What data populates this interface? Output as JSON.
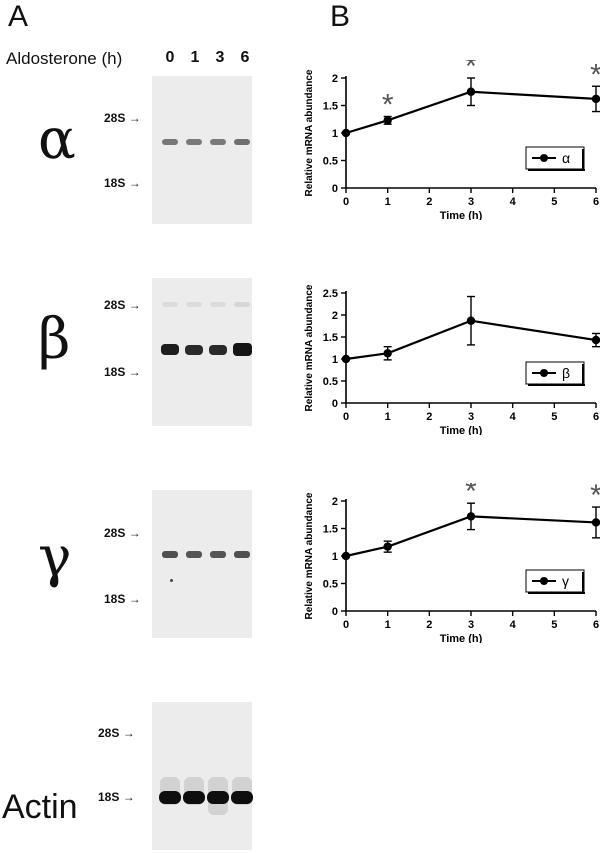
{
  "panels": {
    "a": "A",
    "b": "B"
  },
  "aldosterone_label": "Aldosterone (h)",
  "lanes": [
    "0",
    "1",
    "3",
    "6"
  ],
  "markers": {
    "m28": "28S",
    "m18": "18S"
  },
  "blots": [
    {
      "label": "α"
    },
    {
      "label": "β"
    },
    {
      "label": "γ"
    },
    {
      "label": "Actin"
    }
  ],
  "chart_data": [
    {
      "type": "line",
      "x": [
        0,
        1,
        3,
        6
      ],
      "values": [
        1.0,
        1.23,
        1.75,
        1.62
      ],
      "errors": [
        0.02,
        0.07,
        0.25,
        0.23
      ],
      "significant": [
        false,
        true,
        true,
        true
      ],
      "xlabel": "Time (h)",
      "ylabel": "Relative mRNA abundance",
      "xlim": [
        0,
        6
      ],
      "ylim": [
        0,
        2
      ],
      "xticks": [
        "0",
        "1",
        "2",
        "3",
        "4",
        "5",
        "6"
      ],
      "yticks": [
        "0",
        "0.5",
        "1",
        "1.5",
        "2"
      ],
      "legend": "α",
      "legend_position": "right-middle",
      "significance_marker": "*"
    },
    {
      "type": "line",
      "x": [
        0,
        1,
        3,
        6
      ],
      "values": [
        1.0,
        1.13,
        1.87,
        1.43
      ],
      "errors": [
        0.02,
        0.15,
        0.55,
        0.15
      ],
      "significant": [
        false,
        false,
        false,
        false
      ],
      "xlabel": "Time (h)",
      "ylabel": "Relative mRNA abundance",
      "xlim": [
        0,
        6
      ],
      "ylim": [
        0,
        2.5
      ],
      "xticks": [
        "0",
        "1",
        "2",
        "3",
        "4",
        "5",
        "6"
      ],
      "yticks": [
        "0",
        "0.5",
        "1",
        "1.5",
        "2",
        "2.5"
      ],
      "legend": "β",
      "legend_position": "right-middle",
      "significance_marker": "*"
    },
    {
      "type": "line",
      "x": [
        0,
        1,
        3,
        6
      ],
      "values": [
        1.0,
        1.17,
        1.72,
        1.61
      ],
      "errors": [
        0.02,
        0.1,
        0.24,
        0.28
      ],
      "significant": [
        false,
        false,
        true,
        true
      ],
      "xlabel": "Time (h)",
      "ylabel": "Relative mRNA abundance",
      "xlim": [
        0,
        6
      ],
      "ylim": [
        0,
        2
      ],
      "xticks": [
        "0",
        "1",
        "2",
        "3",
        "4",
        "5",
        "6"
      ],
      "yticks": [
        "0",
        "0.5",
        "1",
        "1.5",
        "2"
      ],
      "legend": "γ",
      "legend_position": "right-middle",
      "significance_marker": "*"
    }
  ]
}
